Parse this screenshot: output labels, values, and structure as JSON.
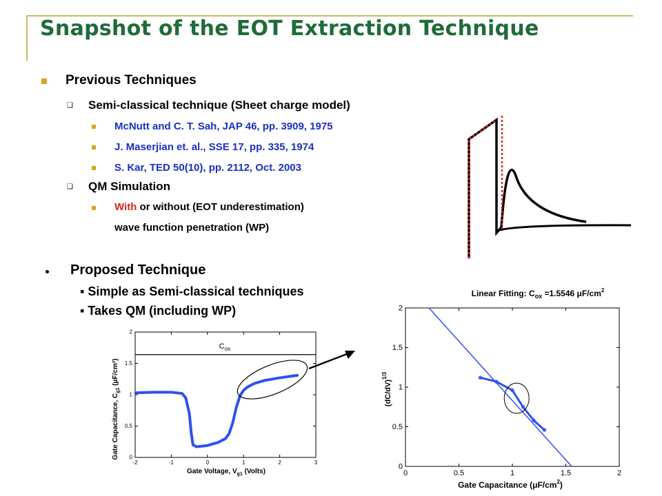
{
  "slide": {
    "title": "Snapshot of the EOT Extraction Technique",
    "previous": {
      "heading": "Previous Techniques",
      "semi_classical": "Semi-classical technique (Sheet charge model)",
      "refs": [
        "McNutt and C. T. Sah, JAP 46, pp. 3909, 1975",
        "J. Maserjian et. al., SSE 17, pp. 335, 1974",
        "S. Kar, TED 50(10), pp. 2112, Oct. 2003"
      ],
      "qm_sim": "QM Simulation",
      "qm_with": "With",
      "qm_rest": " or without (EOT underestimation)",
      "qm_line2": "wave function penetration (WP)"
    },
    "proposed": {
      "heading": "Proposed Technique",
      "items": [
        "Simple as Semi-classical techniques",
        "Takes QM (including WP)"
      ]
    },
    "colors": {
      "title": "#1f6b3a",
      "bullet": "#d9a520",
      "refs": "#1a2fc4",
      "accent_red": "#e0231b",
      "curve_blue": "#2f4ff2"
    }
  },
  "chart_data": [
    {
      "type": "line",
      "title": "",
      "xlabel": "Gate Voltage, V_g1 (Volts)",
      "ylabel": "Gate Capacitance, C_g1 (μF/cm²)",
      "xlim": [
        -2,
        3
      ],
      "ylim": [
        0,
        2
      ],
      "xticks": [
        "-2",
        "-1",
        "0",
        "1",
        "2",
        "3"
      ],
      "yticks": [
        "0",
        "0.5",
        "1",
        "1.5",
        "2"
      ],
      "series": [
        {
          "name": "",
          "x": [
            -2.0,
            -1.5,
            -1.0,
            -0.7,
            -0.6,
            -0.5,
            -0.45,
            -0.4,
            -0.3,
            0.0,
            0.3,
            0.5,
            0.6,
            0.7,
            0.8,
            0.9,
            1.0,
            1.1,
            1.3,
            1.6,
            2.0,
            2.5
          ],
          "y": [
            1.03,
            1.04,
            1.04,
            1.02,
            0.95,
            0.7,
            0.4,
            0.2,
            0.17,
            0.19,
            0.24,
            0.3,
            0.38,
            0.55,
            0.8,
            0.98,
            1.07,
            1.12,
            1.18,
            1.23,
            1.27,
            1.31
          ]
        }
      ],
      "annotations": [
        "C_ox"
      ],
      "cox_line": 1.64
    },
    {
      "type": "line",
      "title": "Linear Fitting: C_ox = 1.5546 μF/cm²",
      "xlabel": "Gate Capacitance (μF/cm²)",
      "ylabel": "(dC/dV)^(1/3)",
      "xlim": [
        0,
        2
      ],
      "ylim": [
        0,
        2
      ],
      "xticks": [
        "0",
        "0.5",
        "1",
        "1.5",
        "2"
      ],
      "yticks": [
        "0",
        "0.5",
        "1",
        "1.5",
        "2"
      ],
      "series": [
        {
          "name": "",
          "x": [
            0.22,
            1.5546
          ],
          "y": [
            2.0,
            0.0
          ]
        },
        {
          "name": "",
          "x": [
            0.7,
            0.85,
            1.0,
            1.1,
            1.2,
            1.3
          ],
          "y": [
            1.12,
            1.07,
            0.96,
            0.75,
            0.58,
            0.46
          ]
        }
      ]
    }
  ]
}
